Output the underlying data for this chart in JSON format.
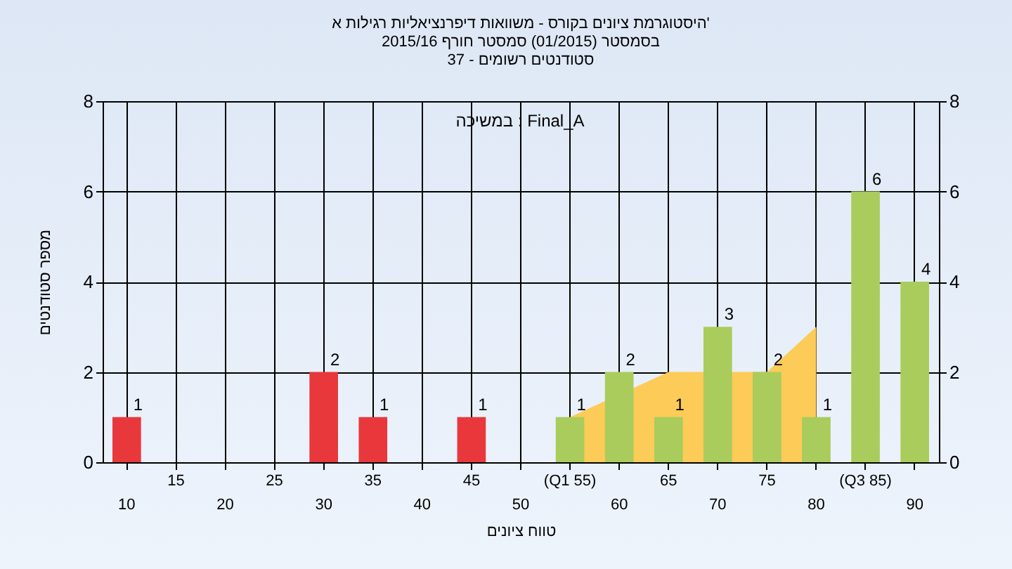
{
  "chart_data": {
    "type": "bar",
    "title": [
      "היסטוגרמת ציונים בקורס - משוואות דיפרנציאליות רגילות א'",
      "בסמסטר (01/2015) סמסטר חורף 2015/16",
      "סטודנטים רשומים - 37"
    ],
    "xlabel": "טווח ציונים",
    "ylabel": "מספר סטודנטים",
    "annotations": [
      "במשיכה : Final_A"
    ],
    "categories": [
      "10",
      "15",
      "20",
      "25",
      "30",
      "35",
      "40",
      "45",
      "50",
      "(Q1 55)",
      "60",
      "65",
      "70",
      "75",
      "80",
      "(Q3 85)",
      "90"
    ],
    "series": [
      {
        "colors": [
          "#e8383c",
          "#e8383c",
          "#e8383c",
          "#e8383c",
          "#e8383c",
          "#e8383c",
          "#e8383c",
          "#e8383c",
          "#e8383c",
          "#a9cc5c",
          "#a9cc5c",
          "#a9cc5c",
          "#a9cc5c",
          "#a9cc5c",
          "#a9cc5c",
          "#a9cc5c",
          "#a9cc5c"
        ],
        "values": [
          1,
          0,
          0,
          0,
          2,
          1,
          0,
          1,
          0,
          1,
          2,
          1,
          3,
          2,
          1,
          6,
          4
        ],
        "value_labels": [
          "1",
          null,
          null,
          null,
          "2",
          "1",
          null,
          "1",
          null,
          "1",
          "2",
          "1",
          "3",
          "2",
          "1",
          "6",
          "4"
        ]
      },
      {
        "type": "area",
        "color": "#fccb58",
        "values": [
          null,
          null,
          null,
          null,
          null,
          null,
          null,
          null,
          null,
          1,
          null,
          2,
          null,
          2,
          3,
          null,
          null
        ]
      }
    ],
    "ylim": [
      0,
      8
    ],
    "yticks": [
      0,
      2,
      4,
      6,
      8
    ],
    "y2lim": [
      0,
      8
    ],
    "y2ticks": [
      0,
      2,
      4,
      6,
      8
    ],
    "grid": true
  }
}
